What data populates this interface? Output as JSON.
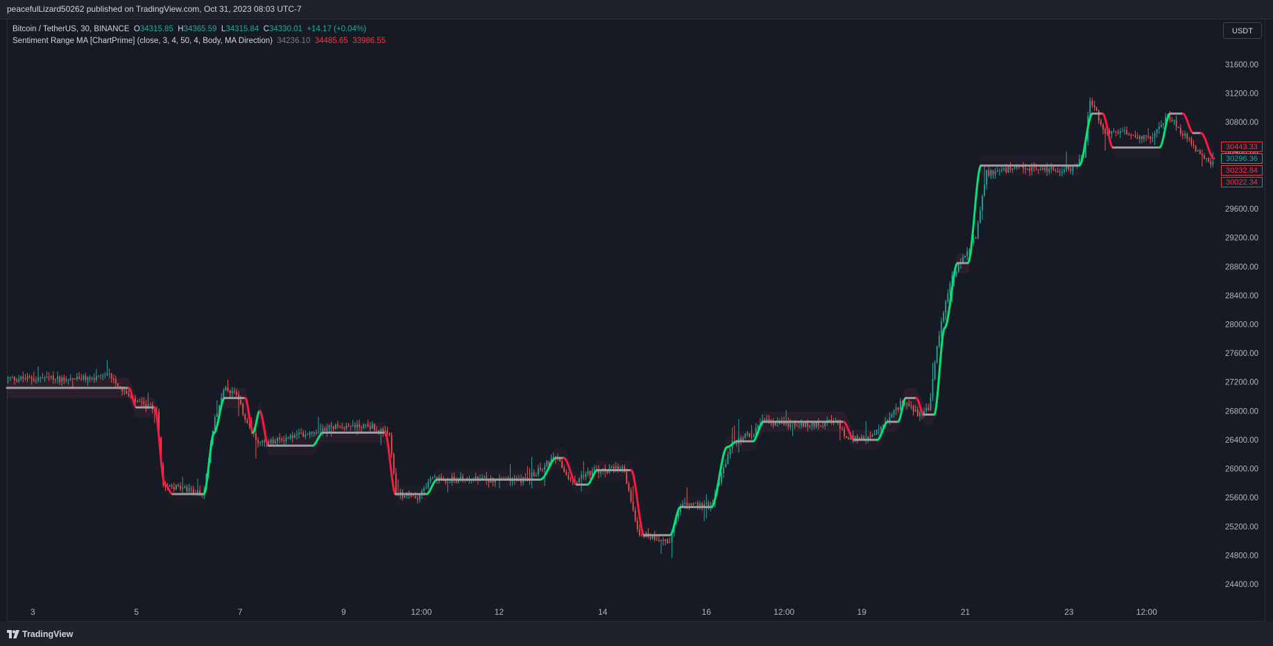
{
  "header": {
    "published": "peacefulLizard50262 published on TradingView.com, Oct 31, 2023 08:03 UTC-7"
  },
  "legend": {
    "symbol": "Bitcoin / TetherUS, 30, BINANCE",
    "o_label": "O",
    "o_value": "34315.85",
    "h_label": "H",
    "h_value": "34365.59",
    "l_label": "L",
    "l_value": "34315.84",
    "c_label": "C",
    "c_value": "34330.01",
    "change": "+14.17 (+0.04%)",
    "indicator": "Sentiment Range MA [ChartPrime] (close, 3, 4, 50, 4, Body, MA Direction)",
    "ind_v1": "34236.10",
    "ind_v2": "34485.65",
    "ind_v3": "33986.55"
  },
  "currency": "USDT",
  "price_badges": [
    {
      "label": "30443.33",
      "value": 30443.33,
      "color": "red"
    },
    {
      "label": "30296.36",
      "value": 30296.36,
      "color": "green"
    },
    {
      "label": "30232.84",
      "value": 30232.84,
      "color": "red"
    },
    {
      "label": "30022.34",
      "value": 30022.34,
      "color": "red"
    }
  ],
  "footer": {
    "brand": "TradingView"
  },
  "colors": {
    "background": "#161a25",
    "up": "#26a69a",
    "down": "#ef5350",
    "ma_up": "#00e676",
    "ma_down": "#ff1744",
    "ma_flat": "#9e9e9e"
  },
  "chart_data": {
    "type": "candlestick",
    "symbol": "BTCUSDT",
    "interval": "30",
    "y_ticks": [
      31600,
      31200,
      30800,
      30400,
      30000,
      29600,
      29200,
      28800,
      28400,
      28000,
      27600,
      27200,
      26800,
      26400,
      26000,
      25600,
      25200,
      24800,
      24400
    ],
    "y_tick_labels": [
      "31600.00",
      "31200.00",
      "30800.00",
      "30400.00",
      "30000.00",
      "29600.00",
      "29200.00",
      "28800.00",
      "28400.00",
      "28000.00",
      "27600.00",
      "27200.00",
      "26800.00",
      "26400.00",
      "26000.00",
      "25600.00",
      "25200.00",
      "24800.00",
      "24400.00"
    ],
    "x_ticks": [
      {
        "label": "3",
        "t": 0.5
      },
      {
        "label": "5",
        "t": 2.5
      },
      {
        "label": "7",
        "t": 4.5
      },
      {
        "label": "9",
        "t": 6.5
      },
      {
        "label": "12:00",
        "t": 8.0
      },
      {
        "label": "12",
        "t": 9.5
      },
      {
        "label": "14",
        "t": 11.5
      },
      {
        "label": "16",
        "t": 13.5
      },
      {
        "label": "12:00",
        "t": 15.0
      },
      {
        "label": "19",
        "t": 16.5
      },
      {
        "label": "21",
        "t": 18.5
      },
      {
        "label": "23",
        "t": 20.5
      },
      {
        "label": "12:00",
        "t": 22.0
      }
    ],
    "x_range": [
      0,
      23.3
    ],
    "y_range": [
      24150,
      31900
    ],
    "price_path": [
      [
        0.0,
        27250
      ],
      [
        1.8,
        27250
      ],
      [
        2.0,
        27300
      ],
      [
        2.4,
        26950
      ],
      [
        2.9,
        26800
      ],
      [
        3.0,
        25800
      ],
      [
        3.5,
        25700
      ],
      [
        3.8,
        25650
      ],
      [
        4.0,
        26700
      ],
      [
        4.2,
        27100
      ],
      [
        4.4,
        27050
      ],
      [
        4.6,
        26700
      ],
      [
        4.8,
        26400
      ],
      [
        5.0,
        26350
      ],
      [
        5.8,
        26500
      ],
      [
        6.4,
        26600
      ],
      [
        7.0,
        26600
      ],
      [
        7.4,
        26450
      ],
      [
        7.5,
        25650
      ],
      [
        7.9,
        25600
      ],
      [
        8.2,
        25850
      ],
      [
        9.0,
        25850
      ],
      [
        10.0,
        25850
      ],
      [
        10.6,
        26150
      ],
      [
        10.9,
        25800
      ],
      [
        11.2,
        25950
      ],
      [
        11.9,
        26000
      ],
      [
        12.2,
        25100
      ],
      [
        12.8,
        25000
      ],
      [
        13.0,
        25500
      ],
      [
        13.6,
        25500
      ],
      [
        14.0,
        26350
      ],
      [
        14.4,
        26500
      ],
      [
        14.6,
        26650
      ],
      [
        15.3,
        26600
      ],
      [
        16.0,
        26650
      ],
      [
        16.2,
        26450
      ],
      [
        16.6,
        26400
      ],
      [
        17.0,
        26650
      ],
      [
        17.3,
        26950
      ],
      [
        17.6,
        26750
      ],
      [
        17.8,
        26850
      ],
      [
        18.0,
        27900
      ],
      [
        18.2,
        28600
      ],
      [
        18.4,
        28850
      ],
      [
        18.7,
        29200
      ],
      [
        18.9,
        30100
      ],
      [
        19.5,
        30150
      ],
      [
        20.5,
        30150
      ],
      [
        20.8,
        30300
      ],
      [
        20.9,
        31150
      ],
      [
        21.2,
        30650
      ],
      [
        21.6,
        30650
      ],
      [
        22.1,
        30550
      ],
      [
        22.4,
        30900
      ],
      [
        22.8,
        30550
      ],
      [
        23.2,
        30250
      ]
    ],
    "ma_series": [
      {
        "t": 0.0,
        "v": 27120,
        "d": "flat"
      },
      {
        "t": 2.35,
        "v": 27120,
        "d": "flat"
      },
      {
        "t": 2.5,
        "v": 26850,
        "d": "down"
      },
      {
        "t": 2.85,
        "v": 26850,
        "d": "flat"
      },
      {
        "t": 3.05,
        "v": 25780,
        "d": "down"
      },
      {
        "t": 3.2,
        "v": 25650,
        "d": "down"
      },
      {
        "t": 3.8,
        "v": 25650,
        "d": "flat"
      },
      {
        "t": 4.0,
        "v": 26500,
        "d": "up"
      },
      {
        "t": 4.2,
        "v": 26980,
        "d": "up"
      },
      {
        "t": 4.6,
        "v": 26980,
        "d": "flat"
      },
      {
        "t": 4.75,
        "v": 26500,
        "d": "down"
      },
      {
        "t": 4.88,
        "v": 26800,
        "d": "up"
      },
      {
        "t": 5.05,
        "v": 26320,
        "d": "down"
      },
      {
        "t": 5.9,
        "v": 26320,
        "d": "flat"
      },
      {
        "t": 6.1,
        "v": 26500,
        "d": "up"
      },
      {
        "t": 7.3,
        "v": 26500,
        "d": "flat"
      },
      {
        "t": 7.5,
        "v": 25650,
        "d": "down"
      },
      {
        "t": 8.1,
        "v": 25650,
        "d": "flat"
      },
      {
        "t": 8.3,
        "v": 25850,
        "d": "up"
      },
      {
        "t": 10.3,
        "v": 25850,
        "d": "flat"
      },
      {
        "t": 10.6,
        "v": 26150,
        "d": "up"
      },
      {
        "t": 10.75,
        "v": 26150,
        "d": "flat"
      },
      {
        "t": 11.0,
        "v": 25780,
        "d": "down"
      },
      {
        "t": 11.2,
        "v": 25780,
        "d": "flat"
      },
      {
        "t": 11.4,
        "v": 25980,
        "d": "up"
      },
      {
        "t": 12.05,
        "v": 25980,
        "d": "flat"
      },
      {
        "t": 12.3,
        "v": 25080,
        "d": "down"
      },
      {
        "t": 12.8,
        "v": 25080,
        "d": "flat"
      },
      {
        "t": 13.0,
        "v": 25470,
        "d": "up"
      },
      {
        "t": 13.6,
        "v": 25470,
        "d": "flat"
      },
      {
        "t": 13.9,
        "v": 26300,
        "d": "up"
      },
      {
        "t": 14.1,
        "v": 26380,
        "d": "up"
      },
      {
        "t": 14.4,
        "v": 26380,
        "d": "flat"
      },
      {
        "t": 14.6,
        "v": 26650,
        "d": "up"
      },
      {
        "t": 16.15,
        "v": 26650,
        "d": "flat"
      },
      {
        "t": 16.35,
        "v": 26400,
        "d": "down"
      },
      {
        "t": 16.8,
        "v": 26400,
        "d": "flat"
      },
      {
        "t": 17.0,
        "v": 26650,
        "d": "up"
      },
      {
        "t": 17.2,
        "v": 26650,
        "d": "flat"
      },
      {
        "t": 17.35,
        "v": 26980,
        "d": "up"
      },
      {
        "t": 17.55,
        "v": 26980,
        "d": "flat"
      },
      {
        "t": 17.7,
        "v": 26750,
        "d": "down"
      },
      {
        "t": 17.9,
        "v": 26750,
        "d": "flat"
      },
      {
        "t": 18.1,
        "v": 27950,
        "d": "up"
      },
      {
        "t": 18.35,
        "v": 28850,
        "d": "up"
      },
      {
        "t": 18.55,
        "v": 28850,
        "d": "flat"
      },
      {
        "t": 18.8,
        "v": 30200,
        "d": "up"
      },
      {
        "t": 20.7,
        "v": 30200,
        "d": "flat"
      },
      {
        "t": 20.95,
        "v": 30920,
        "d": "up"
      },
      {
        "t": 21.15,
        "v": 30920,
        "d": "flat"
      },
      {
        "t": 21.35,
        "v": 30450,
        "d": "down"
      },
      {
        "t": 22.25,
        "v": 30450,
        "d": "flat"
      },
      {
        "t": 22.45,
        "v": 30920,
        "d": "up"
      },
      {
        "t": 22.7,
        "v": 30920,
        "d": "flat"
      },
      {
        "t": 22.9,
        "v": 30650,
        "d": "down"
      },
      {
        "t": 23.05,
        "v": 30650,
        "d": "flat"
      },
      {
        "t": 23.3,
        "v": 30300,
        "d": "down"
      }
    ]
  }
}
